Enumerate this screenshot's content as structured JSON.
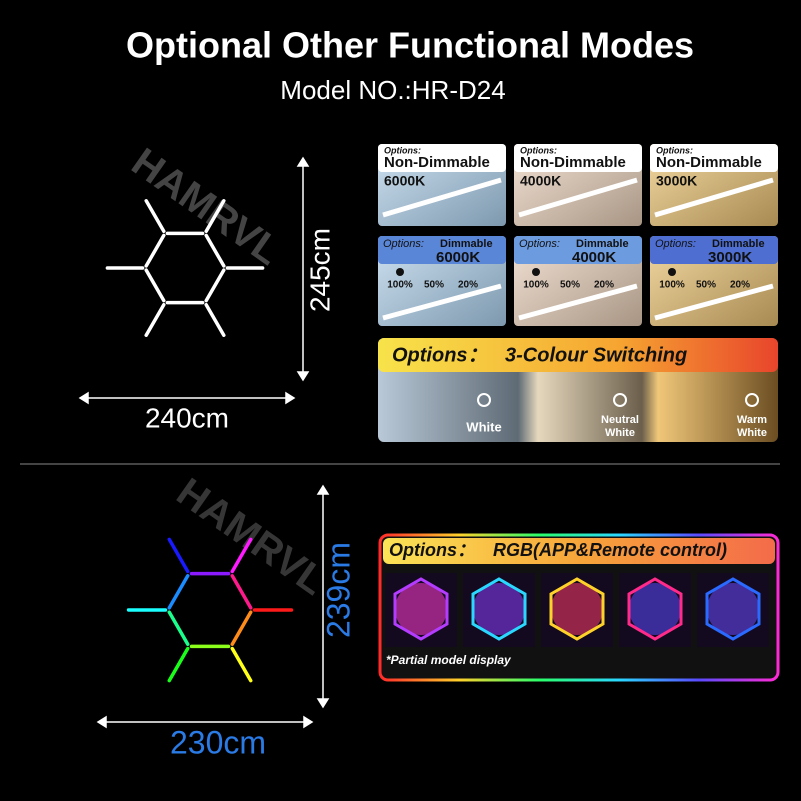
{
  "header": {
    "title": "Optional Other Functional Modes",
    "subtitle": "Model NO.:HR-D24"
  },
  "watermarks": [
    "HAMRVL",
    "HAMRVL"
  ],
  "fixed_size": {
    "height": "245cm",
    "width": "240cm"
  },
  "rgb_size": {
    "height": "239cm",
    "width": "230cm"
  },
  "non_dimmable": [
    {
      "label": "Options:",
      "mode": "Non-Dimmable",
      "temp": "6000K"
    },
    {
      "label": "Options:",
      "mode": "Non-Dimmable",
      "temp": "4000K"
    },
    {
      "label": "Options:",
      "mode": "Non-Dimmable",
      "temp": "3000K"
    }
  ],
  "dimmable": [
    {
      "label": "Options:",
      "mode": "Dimmable",
      "temp": "6000K",
      "levels": [
        "100%",
        "50%",
        "20%"
      ]
    },
    {
      "label": "Options:",
      "mode": "Dimmable",
      "temp": "4000K",
      "levels": [
        "100%",
        "50%",
        "20%"
      ]
    },
    {
      "label": "Options:",
      "mode": "Dimmable",
      "temp": "3000K",
      "levels": [
        "100%",
        "50%",
        "20%"
      ]
    }
  ],
  "colour_switching": {
    "label": "Options：",
    "title": "3-Colour Switching",
    "modes": [
      "White",
      "Neutral White",
      "Warm White"
    ]
  },
  "rgb": {
    "label": "Options：",
    "title": "RGB(APP&Remote control)",
    "note": "*Partial model display"
  }
}
